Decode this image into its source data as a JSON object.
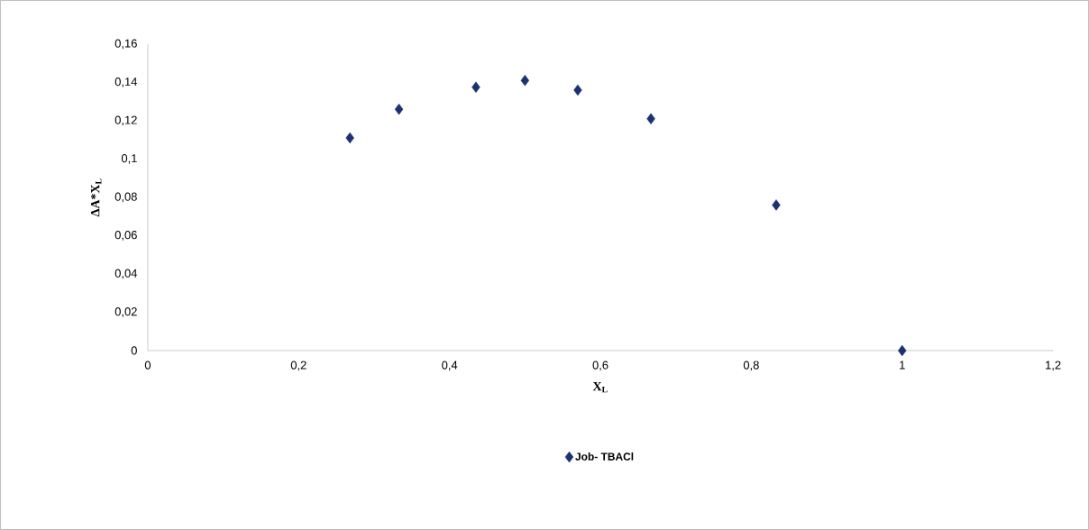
{
  "chart_data": {
    "type": "scatter",
    "xlabel": "X$_{L}$",
    "ylabel": "ΔA*X$_{L}$",
    "x": [
      0.268,
      0.333,
      0.435,
      0.5,
      0.57,
      0.667,
      0.833,
      1
    ],
    "series": [
      {
        "name": "Job- TBACl",
        "color": "#1a3370",
        "values": [
          0.111,
          0.126,
          0.1375,
          0.141,
          0.136,
          0.121,
          0.076,
          0
        ]
      }
    ],
    "xlim": [
      0,
      1.2
    ],
    "xticks": [
      0,
      {
        "value": 0.2,
        "label": "0,2"
      },
      {
        "value": 0.4,
        "label": "0,4"
      },
      {
        "value": 0.6,
        "label": "0,6"
      },
      {
        "value": 0.8,
        "label": "0,8"
      },
      1,
      {
        "value": 1.2,
        "label": "1,2"
      }
    ],
    "ylim": [
      0,
      0.16
    ],
    "yticks": [
      0,
      {
        "value": 0.02,
        "label": "0,02"
      },
      {
        "value": 0.04,
        "label": "0,04"
      },
      {
        "value": 0.06,
        "label": "0,06"
      },
      {
        "value": 0.08,
        "label": "0,08"
      },
      {
        "value": 0.1,
        "label": "0,1"
      },
      {
        "value": 0.12,
        "label": "0,12"
      },
      {
        "value": 0.14,
        "label": "0,14"
      },
      {
        "value": 0.16,
        "label": "0,16"
      }
    ],
    "grid": false,
    "legend": "bottom",
    "marker": "diamond"
  }
}
